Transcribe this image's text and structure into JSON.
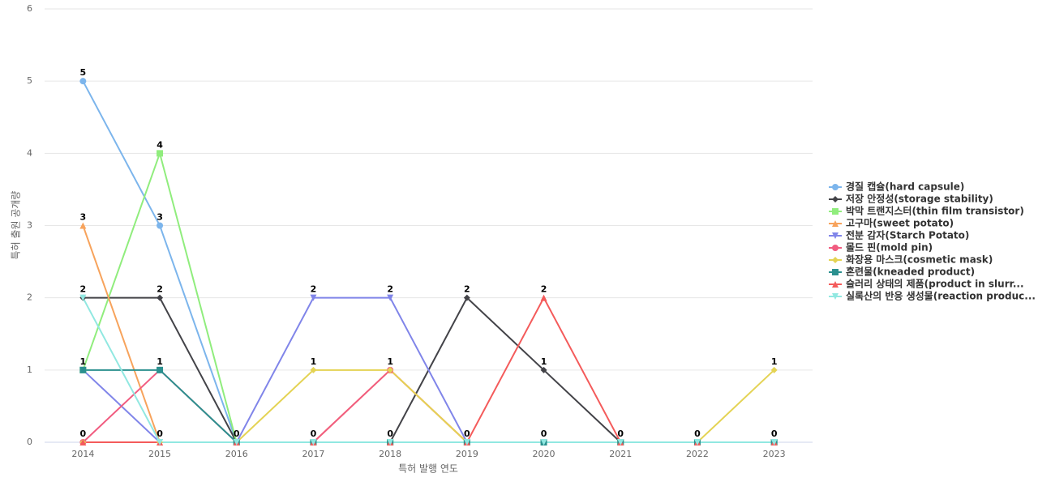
{
  "chart_data": {
    "type": "line",
    "x_label": "특허 발행 연도",
    "y_label": "특허 출원 공개량",
    "categories": [
      "2014",
      "2015",
      "2016",
      "2017",
      "2018",
      "2019",
      "2020",
      "2021",
      "2022",
      "2023"
    ],
    "ylim": [
      0,
      6
    ],
    "yticks": [
      0,
      1,
      2,
      3,
      4,
      5,
      6
    ],
    "grid": true,
    "legend": "right",
    "series": [
      {
        "name": "경질 캡슐(hard capsule)",
        "color": "#7cb5ec",
        "marker": "circle",
        "values": [
          5,
          3,
          0,
          0,
          0,
          0,
          0,
          0,
          0,
          0
        ]
      },
      {
        "name": "저장 안정성(storage stability)",
        "color": "#434348",
        "marker": "diamond",
        "values": [
          2,
          2,
          0,
          0,
          0,
          2,
          1,
          0,
          0,
          0
        ]
      },
      {
        "name": "박막 트랜지스터(thin film transistor)",
        "color": "#90ed7d",
        "marker": "square",
        "values": [
          1,
          4,
          0,
          0,
          0,
          0,
          0,
          0,
          0,
          0
        ]
      },
      {
        "name": "고구마(sweet potato)",
        "color": "#f7a35c",
        "marker": "triangle",
        "values": [
          3,
          0,
          0,
          0,
          1,
          0,
          0,
          0,
          0,
          0
        ]
      },
      {
        "name": "전분 감자(Starch Potato)",
        "color": "#8085e9",
        "marker": "triangle-down",
        "values": [
          1,
          0,
          0,
          2,
          2,
          0,
          0,
          0,
          0,
          0
        ]
      },
      {
        "name": "몰드 핀(mold pin)",
        "color": "#f15c80",
        "marker": "circle",
        "values": [
          0,
          1,
          0,
          0,
          1,
          0,
          0,
          0,
          0,
          0
        ]
      },
      {
        "name": "화장용 마스크(cosmetic mask)",
        "color": "#e4d354",
        "marker": "diamond",
        "values": [
          0,
          0,
          0,
          1,
          1,
          0,
          0,
          0,
          0,
          1
        ]
      },
      {
        "name": "혼련물(kneaded product)",
        "color": "#2b908f",
        "marker": "square",
        "values": [
          1,
          1,
          0,
          0,
          0,
          0,
          0,
          0,
          0,
          0
        ]
      },
      {
        "name": "슬러리 상태의 제품(product in slurr...",
        "color": "#f45b5b",
        "marker": "triangle",
        "values": [
          0,
          0,
          0,
          0,
          0,
          0,
          2,
          0,
          0,
          0
        ]
      },
      {
        "name": "실록산의 반응 생성물(reaction produc...",
        "color": "#91e8e1",
        "marker": "triangle-down",
        "values": [
          2,
          0,
          0,
          0,
          0,
          0,
          0,
          0,
          0,
          0
        ]
      }
    ]
  }
}
